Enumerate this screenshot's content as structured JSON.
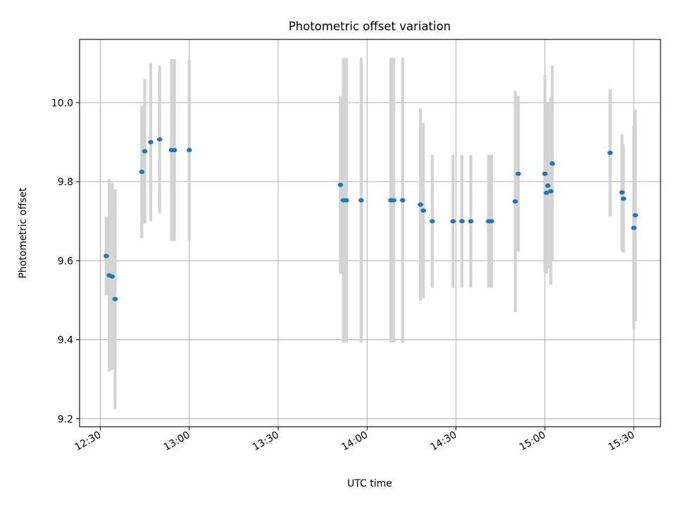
{
  "chart_data": {
    "type": "scatter",
    "title": "Photometric offset variation",
    "xlabel": "UTC time",
    "ylabel": "Photometric offset",
    "x_ticks": [
      "12:30",
      "13:00",
      "13:30",
      "14:00",
      "14:30",
      "15:00",
      "15:30"
    ],
    "x_range": [
      "12:23",
      "15:39"
    ],
    "y_ticks": [
      "9.2",
      "9.4",
      "9.6",
      "9.8",
      "10.0"
    ],
    "ylim": [
      9.18,
      10.16
    ],
    "grid": true,
    "marker_color": "#1f77b4",
    "errorbar_color": "#d3d3d3",
    "series": [
      {
        "points": [
          {
            "t": "12:32",
            "y": 9.612,
            "err": 0.1
          },
          {
            "t": "12:33",
            "y": 9.563,
            "err": 0.243
          },
          {
            "t": "12:34",
            "y": 9.56,
            "err": 0.236
          },
          {
            "t": "12:35",
            "y": 9.503,
            "err": 0.278
          },
          {
            "t": "12:44",
            "y": 9.825,
            "err": 0.167
          },
          {
            "t": "12:45",
            "y": 9.877,
            "err": 0.183
          },
          {
            "t": "12:47",
            "y": 9.9,
            "err": 0.2
          },
          {
            "t": "12:50",
            "y": 9.907,
            "err": 0.187
          },
          {
            "t": "12:54",
            "y": 9.88,
            "err": 0.23
          },
          {
            "t": "12:55",
            "y": 9.88,
            "err": 0.23
          },
          {
            "t": "13:00",
            "y": 9.88,
            "err": 0.23
          },
          {
            "t": "13:51",
            "y": 9.792,
            "err": 0.225
          },
          {
            "t": "13:52",
            "y": 9.753,
            "err": 0.36
          },
          {
            "t": "13:53",
            "y": 9.753,
            "err": 0.36
          },
          {
            "t": "13:58",
            "y": 9.753,
            "err": 0.36
          },
          {
            "t": "14:08",
            "y": 9.753,
            "err": 0.36
          },
          {
            "t": "14:09",
            "y": 9.753,
            "err": 0.36
          },
          {
            "t": "14:12",
            "y": 9.753,
            "err": 0.36
          },
          {
            "t": "14:18",
            "y": 9.742,
            "err": 0.243
          },
          {
            "t": "14:19",
            "y": 9.727,
            "err": 0.222
          },
          {
            "t": "14:22",
            "y": 9.7,
            "err": 0.168
          },
          {
            "t": "14:29",
            "y": 9.7,
            "err": 0.168
          },
          {
            "t": "14:32",
            "y": 9.7,
            "err": 0.168
          },
          {
            "t": "14:35",
            "y": 9.7,
            "err": 0.168
          },
          {
            "t": "14:41",
            "y": 9.7,
            "err": 0.168
          },
          {
            "t": "14:42",
            "y": 9.7,
            "err": 0.168
          },
          {
            "t": "14:50",
            "y": 9.75,
            "err": 0.28
          },
          {
            "t": "14:51",
            "y": 9.82,
            "err": 0.197
          },
          {
            "t": "15:00",
            "y": 9.82,
            "err": 0.25
          },
          {
            "t": "15:00",
            "y": 9.772,
            "err": 0.205
          },
          {
            "t": "15:01",
            "y": 9.79,
            "err": 0.21
          },
          {
            "t": "15:02",
            "y": 9.776,
            "err": 0.237
          },
          {
            "t": "15:02",
            "y": 9.846,
            "err": 0.248
          },
          {
            "t": "15:22",
            "y": 9.873,
            "err": 0.161
          },
          {
            "t": "15:26",
            "y": 9.773,
            "err": 0.147
          },
          {
            "t": "15:26",
            "y": 9.757,
            "err": 0.137
          },
          {
            "t": "15:30",
            "y": 9.683,
            "err": 0.258
          },
          {
            "t": "15:30",
            "y": 9.715,
            "err": 0.268
          }
        ]
      }
    ]
  }
}
